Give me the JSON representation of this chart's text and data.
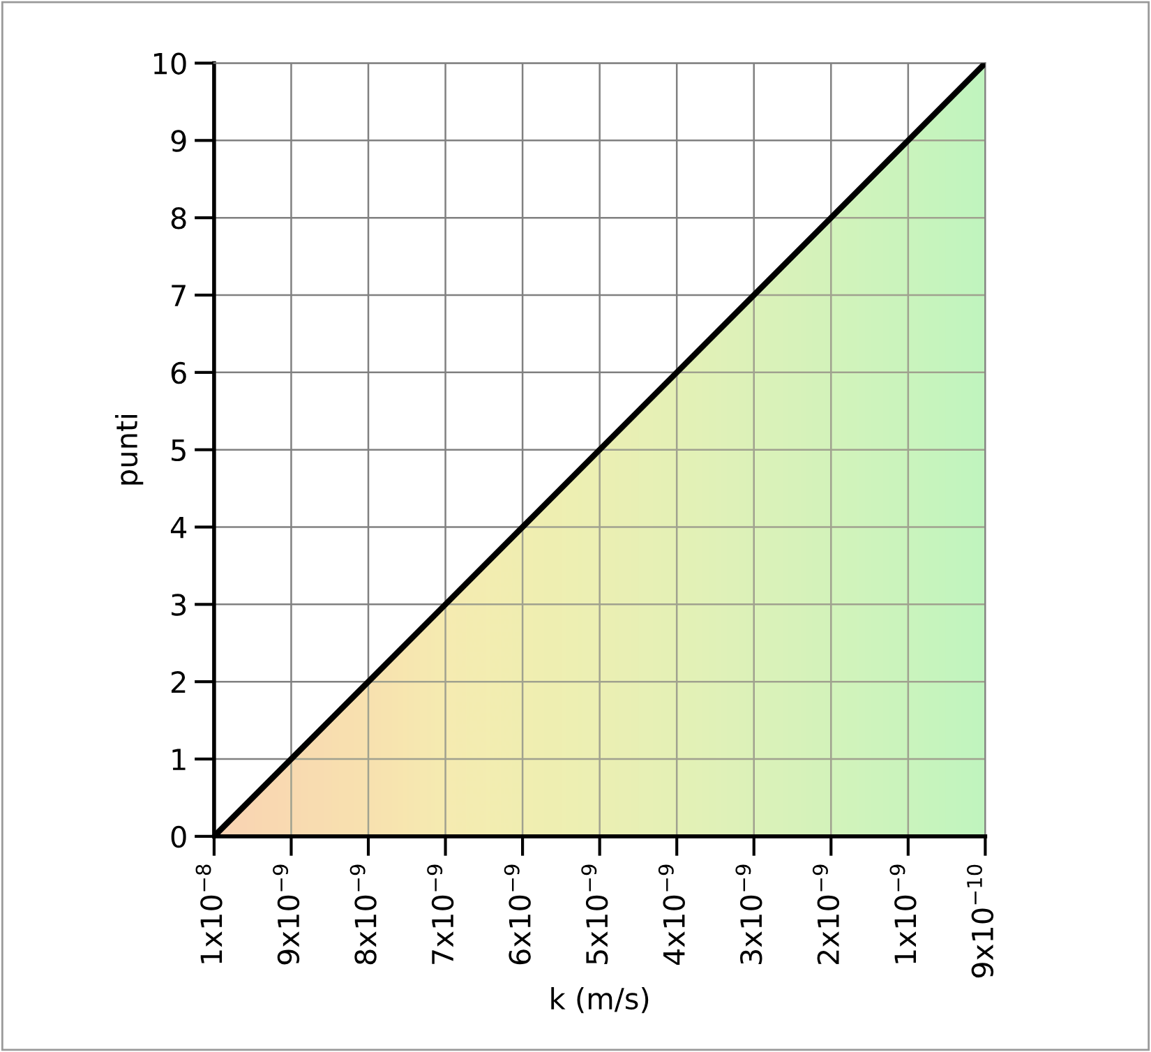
{
  "chart_data": {
    "type": "area",
    "xlabel": "k (m/s)",
    "ylabel": "punti",
    "categories": [
      "1x10$^{−8}$",
      "9x10$^{−9}$",
      "8x10$^{−9}$",
      "7x10$^{−9}$",
      "6x10$^{−9}$",
      "5x10$^{−9}$",
      "4x10$^{−9}$",
      "3x10$^{−9}$",
      "2x10$^{−9}$",
      "1x10$^{−9}$",
      "9x10$^{−10}$"
    ],
    "series": [
      {
        "color": "#000000",
        "values": [
          0,
          1,
          2,
          3,
          4,
          5,
          6,
          7,
          8,
          9,
          10
        ],
        "colors": [
          "#ffc8b4",
          "#ffd2b0",
          "#fedcae",
          "#faeab0",
          "#f3eeb0",
          "#ecf0b4",
          "#e2f2b8",
          "#d6f4bc",
          "#c9f5bf",
          "#bcf6c2",
          "#aef7c4"
        ]
      }
    ],
    "ylim": [
      0,
      10
    ],
    "yticks": [
      0,
      1,
      2,
      3,
      4,
      5,
      6,
      7,
      8,
      9,
      10
    ],
    "grid": true
  }
}
